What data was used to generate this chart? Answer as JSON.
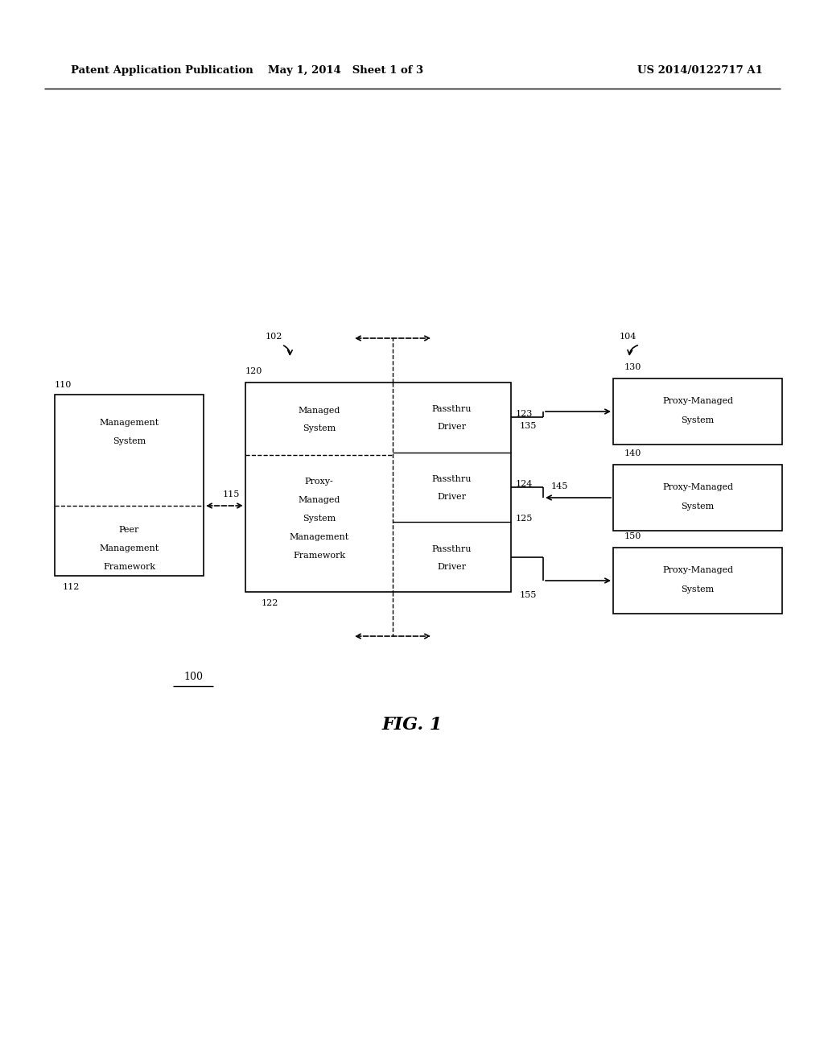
{
  "bg_color": "#ffffff",
  "header_left": "Patent Application Publication",
  "header_mid": "May 1, 2014   Sheet 1 of 3",
  "header_right": "US 2014/0122717 A1",
  "fig_label": "FIG. 1",
  "diagram_label": "100",
  "label_102": "102",
  "label_104": "104",
  "label_110": "110",
  "label_112": "112",
  "label_115": "115",
  "label_120": "120",
  "label_122": "122",
  "label_123": "123",
  "label_124": "124",
  "label_125": "125",
  "label_130": "130",
  "label_135": "135",
  "label_140": "140",
  "label_145": "145",
  "label_150": "150",
  "label_155": "155"
}
